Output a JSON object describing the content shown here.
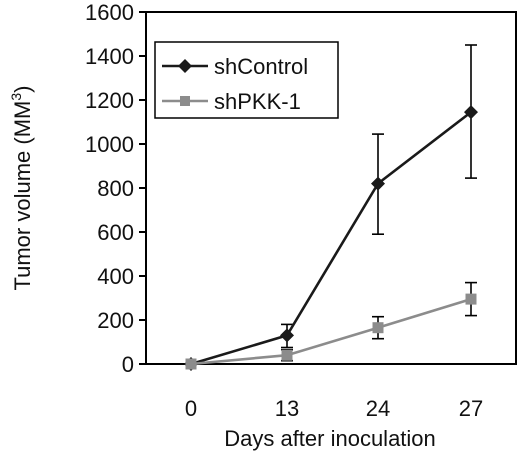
{
  "chart_data": {
    "type": "line",
    "categories": [
      "0",
      "13",
      "24",
      "27"
    ],
    "xlabel": "Days after inoculation",
    "ylabel_main": "Tumor volume (MM",
    "ylabel_sup": "3",
    "ylabel_close": ")",
    "ylim": [
      0,
      1600
    ],
    "yticks": [
      0,
      200,
      400,
      600,
      800,
      1000,
      1200,
      1400,
      1600
    ],
    "grid": false,
    "legend_position": "top-left",
    "series": [
      {
        "name": "shControl",
        "color": "#1a1a1a",
        "marker": "diamond",
        "values": [
          0,
          130,
          820,
          1145
        ],
        "err_low": [
          0,
          75,
          590,
          845
        ],
        "err_high": [
          0,
          180,
          1045,
          1450
        ]
      },
      {
        "name": "shPKK-1",
        "color": "#8c8c8c",
        "marker": "square",
        "values": [
          0,
          40,
          165,
          295
        ],
        "err_low": [
          0,
          15,
          115,
          220
        ],
        "err_high": [
          0,
          65,
          215,
          370
        ]
      }
    ]
  }
}
